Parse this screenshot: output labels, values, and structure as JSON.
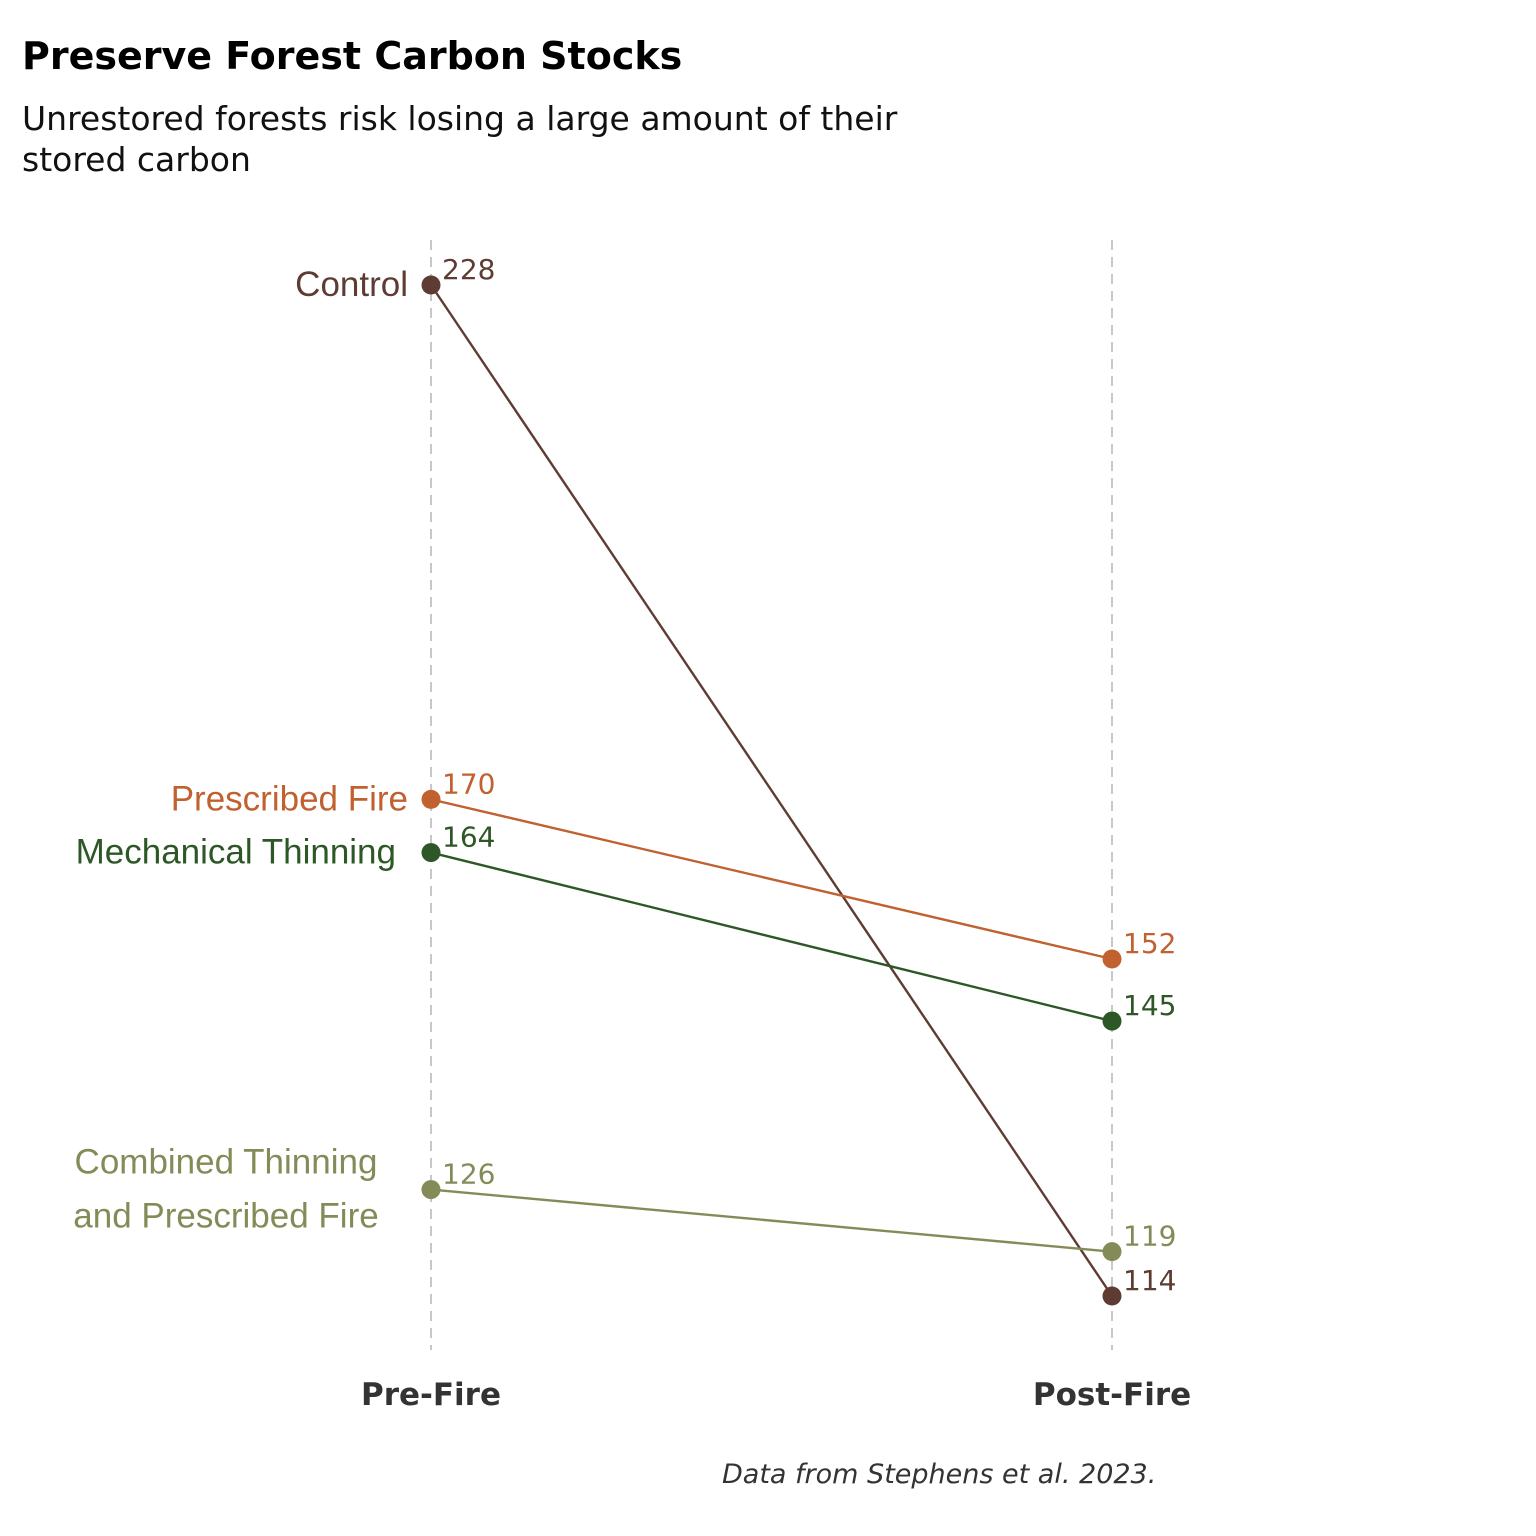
{
  "title": "Preserve Forest Carbon Stocks",
  "subtitle": "Unrestored forests risk losing a large amount of their stored carbon",
  "caption": "Data from Stephens et al. 2023.",
  "chart_data": {
    "type": "line",
    "chart_style": "slope",
    "categories": [
      "Pre-Fire",
      "Post-Fire"
    ],
    "ylim": [
      105,
      236
    ],
    "grid": "vertical dashed lines at each category",
    "series": [
      {
        "name": "Control",
        "label_lines": [
          "Control"
        ],
        "values": [
          228,
          114
        ],
        "color": "#5e3c33"
      },
      {
        "name": "Prescribed Fire",
        "label_lines": [
          "Prescribed Fire"
        ],
        "values": [
          170,
          152
        ],
        "color": "#c0612f"
      },
      {
        "name": "Mechanical Thinning",
        "label_lines": [
          "Mechanical Thinning"
        ],
        "values": [
          164,
          145
        ],
        "color": "#2e5727"
      },
      {
        "name": "Combined Thinning and Prescribed Fire",
        "label_lines": [
          "Combined Thinning",
          "and Prescribed Fire"
        ],
        "values": [
          126,
          119
        ],
        "color": "#858b58"
      }
    ],
    "grid_color": "#c8c8c8"
  }
}
